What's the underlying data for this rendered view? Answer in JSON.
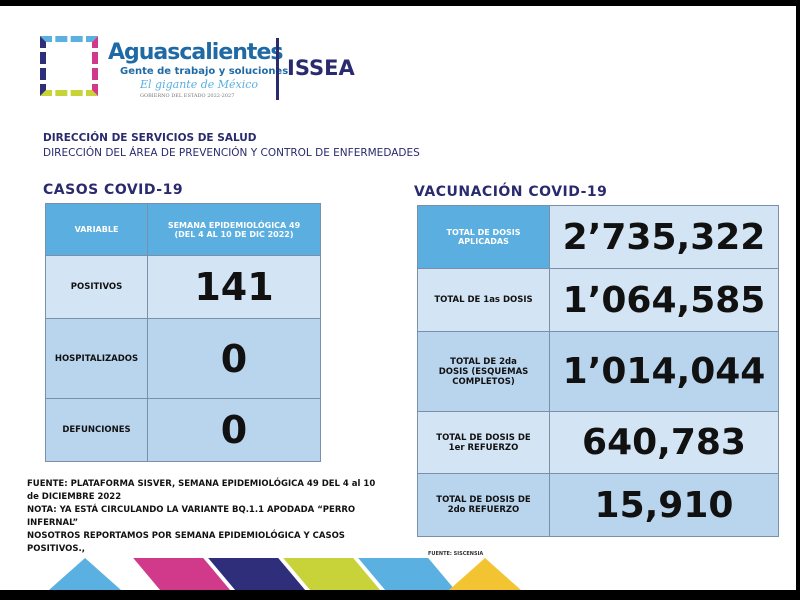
{
  "header": {
    "brand": "Aguascalientes",
    "brand_sub": "Gente de trabajo y soluciones",
    "brand_tag": "El gigante de México",
    "brand_gov": "GOBIERNO DEL ESTADO 2022-2027",
    "org": "ISSEA"
  },
  "direction": {
    "line1": "DIRECCIÓN DE SERVICIOS DE SALUD",
    "line2": "DIRECCIÓN DEL ÁREA DE PREVENCIÓN Y CONTROL DE ENFERMEDADES"
  },
  "cases": {
    "title": "CASOS COVID-19",
    "col_variable": "VARIABLE",
    "col_week": "SEMANA EPIDEMIOLÓGICA 49 (DEL 4 AL 10 DE DIC 2022)",
    "rows": [
      {
        "label": "POSITIVOS",
        "value": "141"
      },
      {
        "label": "HOSPITALIZADOS",
        "value": "0"
      },
      {
        "label": "DEFUNCIONES",
        "value": "0"
      }
    ]
  },
  "vaccination": {
    "title": "VACUNACIÓN COVID-19",
    "rows": [
      {
        "label": "TOTAL DE DOSIS APLICADAS",
        "value": "2’735,322"
      },
      {
        "label": "TOTAL DE 1as DOSIS",
        "value": "1’064,585"
      },
      {
        "label": "TOTAL DE 2da DOSIS (ESQUEMAS COMPLETOS)",
        "value": "1’014,044"
      },
      {
        "label": "TOTAL DE DOSIS DE 1er REFUERZO",
        "value": "640,783"
      },
      {
        "label": "TOTAL DE DOSIS DE 2do REFUERZO",
        "value": "15,910"
      }
    ],
    "source": "FUENTE: SISCENSIA"
  },
  "notes": {
    "line1": "FUENTE: PLATAFORMA SISVER, SEMANA EPIDEMIOLÓGICA 49 DEL 4 al 10 de DICIEMBRE 2022",
    "line2": "NOTA: YA ESTÁ CIRCULANDO LA VARIANTE BQ.1.1 APODADA “PERRO INFERNAL”",
    "line3": "NOSOTROS REPORTAMOS POR SEMANA EPIDEMIOLÓGICA Y CASOS POSITIVOS.,"
  },
  "colors": {
    "header_blue": "#5aaee0",
    "navy": "#2a2a6e",
    "row_light": "#d3e5f5",
    "row_mid": "#b9d5ee",
    "stripes": [
      "#5ab0e0",
      "#d13a8a",
      "#2e2e7a",
      "#c8d33a",
      "#5ab0e0",
      "#f3c431"
    ]
  }
}
